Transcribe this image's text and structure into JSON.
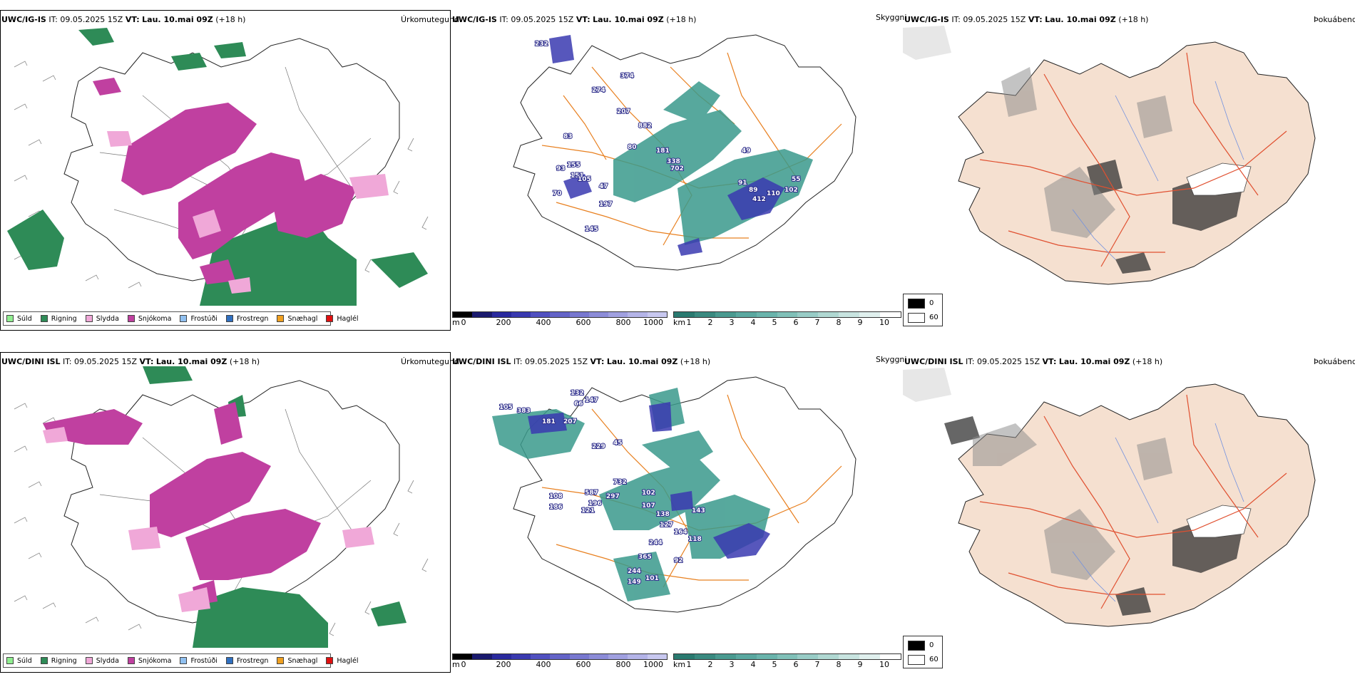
{
  "panels": [
    {
      "row": "top",
      "precip": {
        "model": "UWC/IG-IS",
        "it_label": "IT:",
        "it_value": "09.05.2025 15Z",
        "vt_label": "VT:",
        "vt_value": "Lau. 10.mai 09Z",
        "lead": "(+18 h)",
        "title": "Úrkomutegund"
      },
      "cloud": {
        "model": "UWC/IG-IS",
        "it_label": "IT:",
        "it_value": "09.05.2025 15Z",
        "vt_label": "VT:",
        "vt_value": "Lau. 10.mai 09Z",
        "lead": "(+18 h)",
        "numbers": [
          "232",
          "274",
          "374",
          "207",
          "882",
          "80",
          "181",
          "338",
          "702",
          "49",
          "55",
          "102",
          "110",
          "412",
          "89",
          "91",
          "47",
          "197",
          "155",
          "93",
          "70",
          "151",
          "105",
          "145",
          "83"
        ]
      },
      "fog": {
        "model": "UWC/IG-IS",
        "it_label": "IT:",
        "it_value": "09.05.2025 15Z",
        "vt_label": "VT:",
        "vt_value": "Lau. 10.mai 09Z",
        "lead": "(+18 h)",
        "title_left": "Skyggni",
        "title_right": "Þokuábendi"
      }
    },
    {
      "row": "bottom",
      "precip": {
        "model": "UWC/DINI ISL",
        "it_label": "IT:",
        "it_value": "09.05.2025 15Z",
        "vt_label": "VT:",
        "vt_value": "Lau. 10.mai 09Z",
        "lead": "(+18 h)",
        "title": "Úrkomutegund"
      },
      "cloud": {
        "model": "UWC/DINI ISL",
        "it_label": "IT:",
        "it_value": "09.05.2025 15Z",
        "vt_label": "VT:",
        "vt_value": "Lau. 10.mai 09Z",
        "lead": "(+18 h)",
        "numbers": [
          "105",
          "383",
          "181",
          "207",
          "132",
          "66",
          "147",
          "229",
          "45",
          "732",
          "297",
          "587",
          "108",
          "196",
          "102",
          "107",
          "138",
          "143",
          "127",
          "164",
          "118",
          "244",
          "92",
          "365",
          "244",
          "149",
          "101",
          "186",
          "121"
        ]
      },
      "fog": {
        "model": "UWC/DINI ISL",
        "it_label": "IT:",
        "it_value": "09.05.2025 15Z",
        "vt_label": "VT:",
        "vt_value": "Lau. 10.mai 09Z",
        "lead": "(+18 h)",
        "title_left": "Skyggni",
        "title_right": "Þokuábendi"
      }
    }
  ],
  "precip_legend": [
    {
      "label": "Súld",
      "color": "#90ee90"
    },
    {
      "label": "Rigning",
      "color": "#2e8b57"
    },
    {
      "label": "Slydda",
      "color": "#f0a8d8"
    },
    {
      "label": "Snjókoma",
      "color": "#c040a0"
    },
    {
      "label": "Frostúði",
      "color": "#90c0f0"
    },
    {
      "label": "Frostregn",
      "color": "#3070c0"
    },
    {
      "label": "Snæhagl",
      "color": "#f0a020"
    },
    {
      "label": "Haglél",
      "color": "#e01010"
    }
  ],
  "cloud_base": {
    "unit": "m",
    "ticks": [
      "0",
      "200",
      "400",
      "600",
      "800",
      "1000"
    ],
    "colors": [
      "#000000",
      "#1a1a6e",
      "#2a2a9e",
      "#3a3ab0",
      "#5050c0",
      "#6464c8",
      "#7878d0",
      "#8c8cd8",
      "#a0a0e0",
      "#b4b4e8",
      "#c8c8f0"
    ]
  },
  "cloud_km": {
    "unit": "km",
    "ticks": [
      "1",
      "2",
      "3",
      "4",
      "5",
      "6",
      "7",
      "8",
      "9",
      "10"
    ],
    "colors": [
      "#2a7a70",
      "#3a8a80",
      "#4a9a90",
      "#5aa8a0",
      "#6ab4ac",
      "#80c0b8",
      "#98ccc6",
      "#b0d8d2",
      "#c8e4e0",
      "#e0f0ee",
      "#ffffff"
    ]
  },
  "fog_scale": {
    "high": "0",
    "low": "60"
  },
  "colors": {
    "snow": "#c040a0",
    "rain": "#2e8b57",
    "sleet": "#f0a8d8",
    "cloud_teal": "#3a9a8c",
    "cloud_blue": "#3a3ab0",
    "road": "#e88020",
    "fog_land": "#f5e0d0",
    "fog_road": "#e05030",
    "river": "#7090e0"
  }
}
